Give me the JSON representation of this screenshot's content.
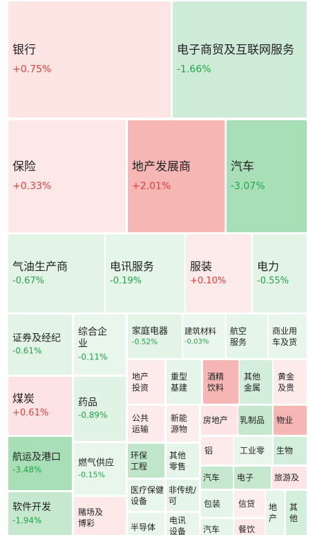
{
  "tiles": [
    {
      "name": "银行",
      "change": "+0.75%",
      "bg": "#fde5e4",
      "dir": "up"
    },
    {
      "name": "电子商贸及互联网服务",
      "change": "-1.66%",
      "bg": "#cdebd6",
      "dir": "down"
    },
    {
      "name": "保险",
      "change": "+0.33%",
      "bg": "#fde8e8",
      "dir": "up"
    },
    {
      "name": "地产发展商",
      "change": "+2.01%",
      "bg": "#f6b6b4",
      "dir": "up"
    },
    {
      "name": "汽车",
      "change": "-3.07%",
      "bg": "#a9dfb7",
      "dir": "down"
    },
    {
      "name": "气油生产商",
      "change": "-0.67%",
      "bg": "#e3f4e7",
      "dir": "down"
    },
    {
      "name": "电讯服务",
      "change": "-0.19%",
      "bg": "#e6f5ea",
      "dir": "down"
    },
    {
      "name": "服装",
      "change": "+0.10%",
      "bg": "#fdeaea",
      "dir": "up"
    },
    {
      "name": "电力",
      "change": "-0.55%",
      "bg": "#e3f4e7",
      "dir": "down"
    },
    {
      "name": "证券及经纪",
      "change": "-0.61%",
      "bg": "#e3f4e7",
      "dir": "down"
    },
    {
      "name": "综合企业",
      "change": "-0.11%",
      "bg": "#e8f6ec",
      "dir": "down"
    },
    {
      "name": "家庭电器",
      "change": "-0.52%",
      "bg": "#e3f4e7",
      "dir": "down"
    },
    {
      "name": "建筑材料",
      "change": "-0.03%",
      "bg": "#eaf7ee",
      "dir": "down"
    },
    {
      "name": "航空服务",
      "change": "",
      "bg": "#e6f5ea",
      "dir": "down"
    },
    {
      "name": "商业用车及货",
      "change": "",
      "bg": "#e8f6ec",
      "dir": "down"
    },
    {
      "name": "煤炭",
      "change": "+0.61%",
      "bg": "#fde3e3",
      "dir": "up"
    },
    {
      "name": "药品",
      "change": "-0.89%",
      "bg": "#e0f3e5",
      "dir": "down"
    },
    {
      "name": "地产投资",
      "change": "",
      "bg": "#fdeaea",
      "dir": "up"
    },
    {
      "name": "重型基建",
      "change": "",
      "bg": "#e6f5ea",
      "dir": "down"
    },
    {
      "name": "酒精饮料",
      "change": "",
      "bg": "#f6b6b4",
      "dir": "up"
    },
    {
      "name": "其他金属",
      "change": "",
      "bg": "#d3eedb",
      "dir": "down"
    },
    {
      "name": "黄金及贵",
      "change": "",
      "bg": "#fdeaea",
      "dir": "up"
    },
    {
      "name": "公共运输",
      "change": "",
      "bg": "#fdeaea",
      "dir": "up"
    },
    {
      "name": "新能源物",
      "change": "",
      "bg": "#fdeeee",
      "dir": "up"
    },
    {
      "name": "房地产",
      "change": "",
      "bg": "#fde5e5",
      "dir": "up"
    },
    {
      "name": "乳制品",
      "change": "",
      "bg": "#c6e8cf",
      "dir": "down"
    },
    {
      "name": "物业",
      "change": "",
      "bg": "#f6b6b4",
      "dir": "up"
    },
    {
      "name": "航运及港口",
      "change": "-3.48%",
      "bg": "#a9dfb7",
      "dir": "down"
    },
    {
      "name": "燃气供应",
      "change": "-0.15%",
      "bg": "#e8f6ec",
      "dir": "down"
    },
    {
      "name": "环保工程",
      "change": "",
      "bg": "#bfe6c9",
      "dir": "down"
    },
    {
      "name": "其他零售",
      "change": "",
      "bg": "#e6f5ea",
      "dir": "down"
    },
    {
      "name": "铝",
      "change": "",
      "bg": "#fdeaea",
      "dir": "up"
    },
    {
      "name": "工业零",
      "change": "",
      "bg": "#e8f6ec",
      "dir": "down"
    },
    {
      "name": "生物",
      "change": "",
      "bg": "#d3eedb",
      "dir": "down"
    },
    {
      "name": "汽车",
      "change": "",
      "bg": "#c6e8cf",
      "dir": "down"
    },
    {
      "name": "电子",
      "change": "",
      "bg": "#c6e8cf",
      "dir": "down"
    },
    {
      "name": "旅游及",
      "change": "",
      "bg": "#fde5e5",
      "dir": "up"
    },
    {
      "name": "医疗保健设备",
      "change": "",
      "bg": "#e8f6ec",
      "dir": "down"
    },
    {
      "name": "非传统/可",
      "change": "",
      "bg": "#e6f5ea",
      "dir": "down"
    },
    {
      "name": "软件开发",
      "change": "-1.94%",
      "bg": "#c6e8cf",
      "dir": "down"
    },
    {
      "name": "赌场及博彩",
      "change": "",
      "bg": "#fde8e8",
      "dir": "up"
    },
    {
      "name": "包装",
      "change": "",
      "bg": "#e6f5ea",
      "dir": "down"
    },
    {
      "name": "信贷",
      "change": "",
      "bg": "#fdeeee",
      "dir": "up"
    },
    {
      "name": "地产",
      "change": "",
      "bg": "#e6f5ea",
      "dir": "down"
    },
    {
      "name": "其他",
      "change": "",
      "bg": "#d3eedb",
      "dir": "down"
    },
    {
      "name": "半导体",
      "change": "",
      "bg": "#e8f6ec",
      "dir": "down"
    },
    {
      "name": "电讯设备",
      "change": "",
      "bg": "#e8f6ec",
      "dir": "down"
    },
    {
      "name": "汽车",
      "change": "",
      "bg": "#e6f5ea",
      "dir": "down"
    },
    {
      "name": "餐饮",
      "change": "",
      "bg": "#fde8e8",
      "dir": "up"
    }
  ]
}
